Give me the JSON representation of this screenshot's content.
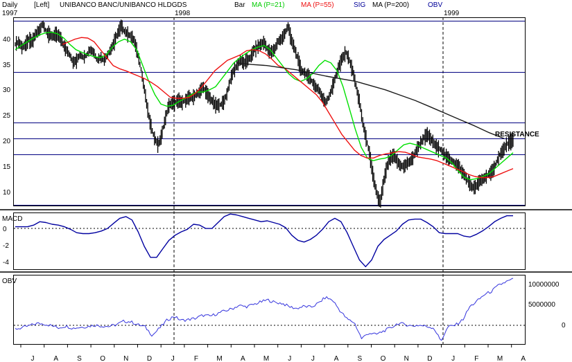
{
  "header": {
    "period": "Daily",
    "scale_side": "[Left]",
    "title": "UNIBANCO BANC/UNIBANCO HLDGDS",
    "legend_bar": "Bar",
    "legend_ma21": "MA (P=21)",
    "legend_ma55": "MA (P=55)",
    "legend_sig": "SIG",
    "legend_ma200": "MA (P=200)",
    "legend_obv": "OBV",
    "year_1997": "1997",
    "year_1998": "1998",
    "year_1999": "1999"
  },
  "colors": {
    "price_bar": "#000000",
    "ma21": "#00e000",
    "ma55": "#ee1111",
    "ma200": "#1a1a1a",
    "macd": "#0000a0",
    "obv": "#3333dd",
    "hline": "#000080",
    "label_blue": "#000099"
  },
  "chart_data": [
    {
      "type": "line",
      "panel": "price",
      "annotation": "RESISTANCE",
      "ylim": [
        7.5,
        43
      ],
      "y_ticks": [
        10,
        15,
        20,
        25,
        30,
        35,
        40
      ],
      "horizontal_lines": [
        42.5,
        32.8,
        23.2,
        20.2,
        17.2,
        7.6
      ],
      "x_start": "1997-06",
      "x_end": "1999-04",
      "series": [
        {
          "name": "Bar",
          "values": [
            38,
            38.5,
            37.5,
            38,
            39,
            38.5,
            40,
            40.5,
            42,
            40.5,
            40,
            39.5,
            40,
            39.5,
            38,
            37,
            36,
            34.5,
            35,
            36,
            35.5,
            36,
            37,
            36.5,
            35,
            35.5,
            35,
            36,
            37,
            38.5,
            40,
            41.5,
            40.5,
            40,
            39.5,
            38.5,
            36,
            33,
            29,
            25,
            22,
            20,
            19,
            21,
            24,
            26.5,
            27,
            27,
            27.5,
            27,
            27.5,
            28,
            28,
            28.5,
            29,
            30,
            29,
            28,
            27,
            26.5,
            26.5,
            27,
            28.5,
            31,
            33,
            34,
            35,
            34.5,
            35,
            35.5,
            37,
            37.5,
            38,
            38.5,
            37,
            36.5,
            37,
            38.5,
            39,
            40,
            41.5,
            39,
            37,
            35,
            33,
            32.5,
            32,
            31,
            30,
            29.5,
            28,
            27,
            28,
            30,
            32,
            34,
            35.5,
            36.5,
            35,
            33,
            30,
            27,
            23,
            20,
            17,
            13,
            10,
            8,
            12,
            15,
            16.5,
            17,
            16,
            15,
            15,
            15.5,
            16,
            17,
            18.5,
            19.5,
            20.5,
            21,
            20,
            19,
            18.5,
            18,
            17,
            16.5,
            16,
            15.5,
            15,
            14,
            13,
            12,
            11,
            11,
            12,
            12.5,
            13,
            13.5,
            14,
            15.5,
            17,
            18,
            19,
            19.5,
            20
          ]
        },
        {
          "name": "MA (P=21)",
          "values": [
            37,
            37.8,
            38.5,
            39.2,
            39.8,
            40.2,
            40.3,
            40,
            39.2,
            38,
            37,
            36.5,
            36,
            35.7,
            35.5,
            36,
            37.5,
            38.5,
            39,
            38.5,
            37,
            34,
            31,
            28.5,
            26.7,
            26.3,
            26.5,
            27.2,
            27.8,
            28.5,
            29,
            29,
            29.4,
            30,
            31.5,
            33,
            34.5,
            35.5,
            36.3,
            37,
            37.5,
            37.8,
            37,
            35.5,
            34,
            32.5,
            31.5,
            31,
            31.5,
            32.5,
            34,
            35,
            34.5,
            33,
            30,
            26,
            22,
            18.5,
            16.5,
            16,
            16.3,
            16.5,
            17,
            18,
            19,
            19.3,
            19,
            18.5,
            18,
            17.5,
            17,
            16.5,
            15.5,
            14,
            12.8,
            12.4,
            12.6,
            13,
            13.5,
            14.5,
            15.5,
            16.5,
            17.5
          ]
        },
        {
          "name": "MA (P=55)",
          "values": [
            38,
            38.5,
            39,
            39.3,
            39.2,
            38.5,
            37,
            35.5,
            34,
            33.4,
            33,
            32.5,
            32,
            31.5,
            30.8,
            30,
            29,
            28,
            27.8,
            27.8,
            28,
            28.8,
            30,
            31.5,
            33,
            34,
            35,
            35.5,
            36,
            36.8,
            37,
            36.8,
            36.2,
            35.2,
            34,
            33.5,
            32.5,
            31.5,
            30.5,
            29.5,
            28.5,
            27,
            25,
            23,
            21,
            19.5,
            18,
            17,
            16.5,
            16.5,
            17,
            17.3,
            17.5,
            17.7,
            17.6,
            17.2,
            16.7,
            16.5,
            16.3,
            16,
            15.5,
            15,
            14.5,
            14,
            13.4,
            13,
            12.8,
            12.8,
            13,
            13.5,
            14,
            14.5
          ]
        },
        {
          "name": "MA (P=200)",
          "values": [
            34.5,
            34.2,
            34,
            33.6,
            33.2,
            32.6,
            32,
            31.5,
            31,
            30.2,
            29.4,
            28.4,
            27.4,
            26.2,
            25,
            23.8,
            22.6,
            21.3,
            20.2
          ]
        }
      ]
    },
    {
      "type": "line",
      "panel": "macd",
      "title": "MACD",
      "ylim": [
        -5,
        1.6
      ],
      "y_ticks": [
        0,
        -2,
        -4
      ],
      "series": [
        {
          "name": "MACD",
          "values": [
            0,
            0,
            0,
            0.2,
            0.6,
            0.5,
            0.3,
            0.2,
            0,
            -0.3,
            -0.7,
            -0.8,
            -0.8,
            -0.7,
            -0.5,
            -0.2,
            0.4,
            1,
            1.2,
            0.8,
            -0.6,
            -2.3,
            -3.6,
            -3.6,
            -2.6,
            -1.6,
            -1,
            -0.6,
            -0.3,
            0.3,
            0.2,
            -0.2,
            -0.2,
            0.5,
            1.2,
            1.5,
            1.4,
            1.2,
            1,
            0.8,
            0.6,
            0.7,
            0.5,
            0.3,
            -0.1,
            -1,
            -1.6,
            -1.8,
            -1.5,
            -1,
            -0.3,
            0.6,
            1,
            0.6,
            -0.7,
            -2.3,
            -3.9,
            -4.7,
            -3.9,
            -2.3,
            -1.5,
            -1,
            -0.5,
            0.3,
            0.8,
            0.9,
            0.9,
            0.5,
            0,
            -0.7,
            -0.8,
            -0.8,
            -0.8,
            -1.1,
            -1.2,
            -0.9,
            -0.5,
            0,
            0.6,
            1,
            1.3,
            1.3
          ]
        }
      ]
    },
    {
      "type": "line",
      "panel": "obv",
      "title": "OBV",
      "ylim": [
        -3500000,
        12500000
      ],
      "y_ticks": [
        10000000,
        5000000,
        0
      ],
      "series": [
        {
          "name": "OBV",
          "values": [
            0,
            300000,
            800000,
            1300000,
            1200000,
            800000,
            300000,
            700000,
            200000,
            400000,
            600000,
            900000,
            700000,
            600000,
            1000000,
            1800000,
            1700000,
            1000000,
            500000,
            -1500000,
            200000,
            2000000,
            3000000,
            2000000,
            2200000,
            2500000,
            3200000,
            3000000,
            3600000,
            4200000,
            4700000,
            5500000,
            5200000,
            5700000,
            6300000,
            6800000,
            6200000,
            6000000,
            5200000,
            4800000,
            5300000,
            5100000,
            6000000,
            7400000,
            6700000,
            4300000,
            2300000,
            1500000,
            -2200000,
            -900000,
            -1300000,
            -500000,
            200000,
            1300000,
            1100000,
            700000,
            900000,
            600000,
            300000,
            -2800000,
            500000,
            900000,
            2100000,
            5200000,
            6500000,
            8000000,
            8800000,
            10200000,
            11000000,
            11600000
          ]
        }
      ]
    }
  ],
  "x_axis": {
    "month_labels": [
      "J",
      "A",
      "S",
      "O",
      "N",
      "D",
      "J",
      "F",
      "M",
      "A",
      "M",
      "J",
      "J",
      "A",
      "S",
      "O",
      "N",
      "D",
      "J",
      "F",
      "M",
      "A"
    ]
  },
  "y_axis": {
    "price_labels": [
      "40",
      "35",
      "30",
      "25",
      "20",
      "15",
      "10"
    ],
    "macd_labels": [
      "0",
      "-2",
      "-4"
    ],
    "obv_labels": [
      "10000000",
      "5000000",
      "0"
    ]
  }
}
